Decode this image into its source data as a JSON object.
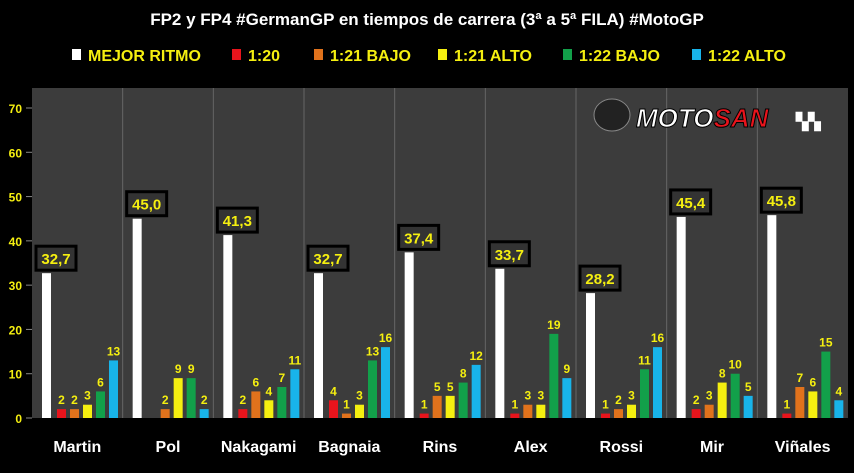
{
  "chart_data": {
    "type": "bar",
    "title": "FP2 y FP4 #GermanGP en tiempos de carrera (3ª a 5ª FILA) #MotoGP",
    "logo_text": "MOTOSAN",
    "categories": [
      "Martin",
      "Pol",
      "Nakagami",
      "Bagnaia",
      "Rins",
      "Alex",
      "Rossi",
      "Mir",
      "Viñales"
    ],
    "ylim": [
      0,
      70
    ],
    "yticks": [
      0,
      10,
      20,
      30,
      40,
      50,
      60,
      70
    ],
    "legend_position": "top",
    "series": [
      {
        "name": "MEJOR RITMO",
        "color": "#ffffff",
        "values": [
          32.7,
          45.0,
          41.3,
          32.7,
          37.4,
          33.7,
          28.2,
          45.4,
          45.8
        ],
        "labels": [
          "32,7",
          "45,0",
          "41,3",
          "32,7",
          "37,4",
          "33,7",
          "28,2",
          "45,4",
          "45,8"
        ]
      },
      {
        "name": "1:20",
        "color": "#e8141c",
        "values": [
          2,
          null,
          2,
          4,
          1,
          1,
          1,
          2,
          1
        ]
      },
      {
        "name": "1:21 BAJO",
        "color": "#e0721c",
        "values": [
          2,
          2,
          6,
          1,
          5,
          3,
          2,
          3,
          7
        ]
      },
      {
        "name": "1:21 ALTO",
        "color": "#f5ef10",
        "values": [
          3,
          9,
          4,
          3,
          5,
          3,
          3,
          8,
          6
        ]
      },
      {
        "name": "1:22 BAJO",
        "color": "#12a04a",
        "values": [
          6,
          9,
          7,
          13,
          8,
          19,
          11,
          10,
          15
        ]
      },
      {
        "name": "1:22 ALTO",
        "color": "#18b4ea",
        "values": [
          13,
          2,
          11,
          16,
          12,
          9,
          16,
          5,
          4
        ]
      }
    ]
  }
}
